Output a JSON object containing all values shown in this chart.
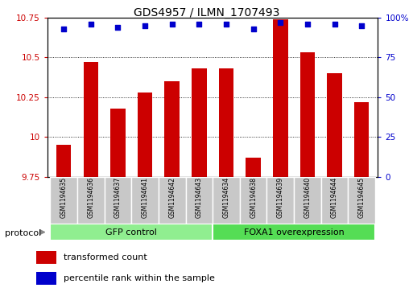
{
  "title": "GDS4957 / ILMN_1707493",
  "samples": [
    "GSM1194635",
    "GSM1194636",
    "GSM1194637",
    "GSM1194641",
    "GSM1194642",
    "GSM1194643",
    "GSM1194634",
    "GSM1194638",
    "GSM1194639",
    "GSM1194640",
    "GSM1194644",
    "GSM1194645"
  ],
  "transformed_counts": [
    9.95,
    10.47,
    10.18,
    10.28,
    10.35,
    10.43,
    10.43,
    9.87,
    10.74,
    10.53,
    10.4,
    10.22
  ],
  "percentile_ranks": [
    93,
    96,
    94,
    95,
    96,
    96,
    96,
    93,
    97,
    96,
    96,
    95
  ],
  "bar_color": "#CC0000",
  "dot_color": "#0000CC",
  "ylim_left": [
    9.75,
    10.75
  ],
  "ylim_right": [
    0,
    100
  ],
  "yticks_left": [
    9.75,
    10.0,
    10.25,
    10.5,
    10.75
  ],
  "ytick_labels_left": [
    "9.75",
    "10",
    "10.25",
    "10.5",
    "10.75"
  ],
  "yticks_right": [
    0,
    25,
    50,
    75,
    100
  ],
  "ytick_labels_right": [
    "0",
    "25",
    "50",
    "75",
    "100%"
  ],
  "bar_width": 0.55,
  "legend_items": [
    "transformed count",
    "percentile rank within the sample"
  ],
  "legend_colors": [
    "#CC0000",
    "#0000CC"
  ],
  "group_info": [
    {
      "label": "GFP control",
      "start": 0,
      "end": 5,
      "color": "#90EE90"
    },
    {
      "label": "FOXA1 overexpression",
      "start": 6,
      "end": 11,
      "color": "#55DD55"
    }
  ],
  "sample_bg_color": "#C8C8C8",
  "protocol_label": "protocol"
}
